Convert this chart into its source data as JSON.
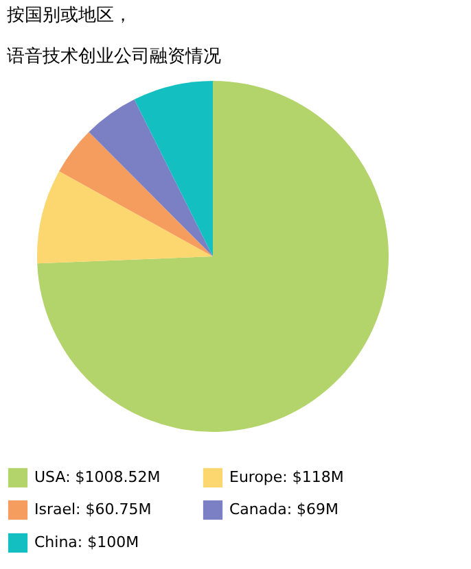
{
  "chart_data": {
    "type": "pie",
    "title": [
      "按国别或地区，",
      "语音技术创业公司融资情况"
    ],
    "categories": [
      "USA: $1008.52M",
      "Europe: $118M",
      "Israel: $60.75M",
      "Canada: $69M",
      "China: $100M"
    ],
    "values": [
      1008.52,
      118,
      60.75,
      69,
      100
    ],
    "colors": [
      "#b3d36b",
      "#fcd66e",
      "#f59d5e",
      "#7b7fc4",
      "#13bfc0"
    ],
    "legend": "bottom"
  }
}
